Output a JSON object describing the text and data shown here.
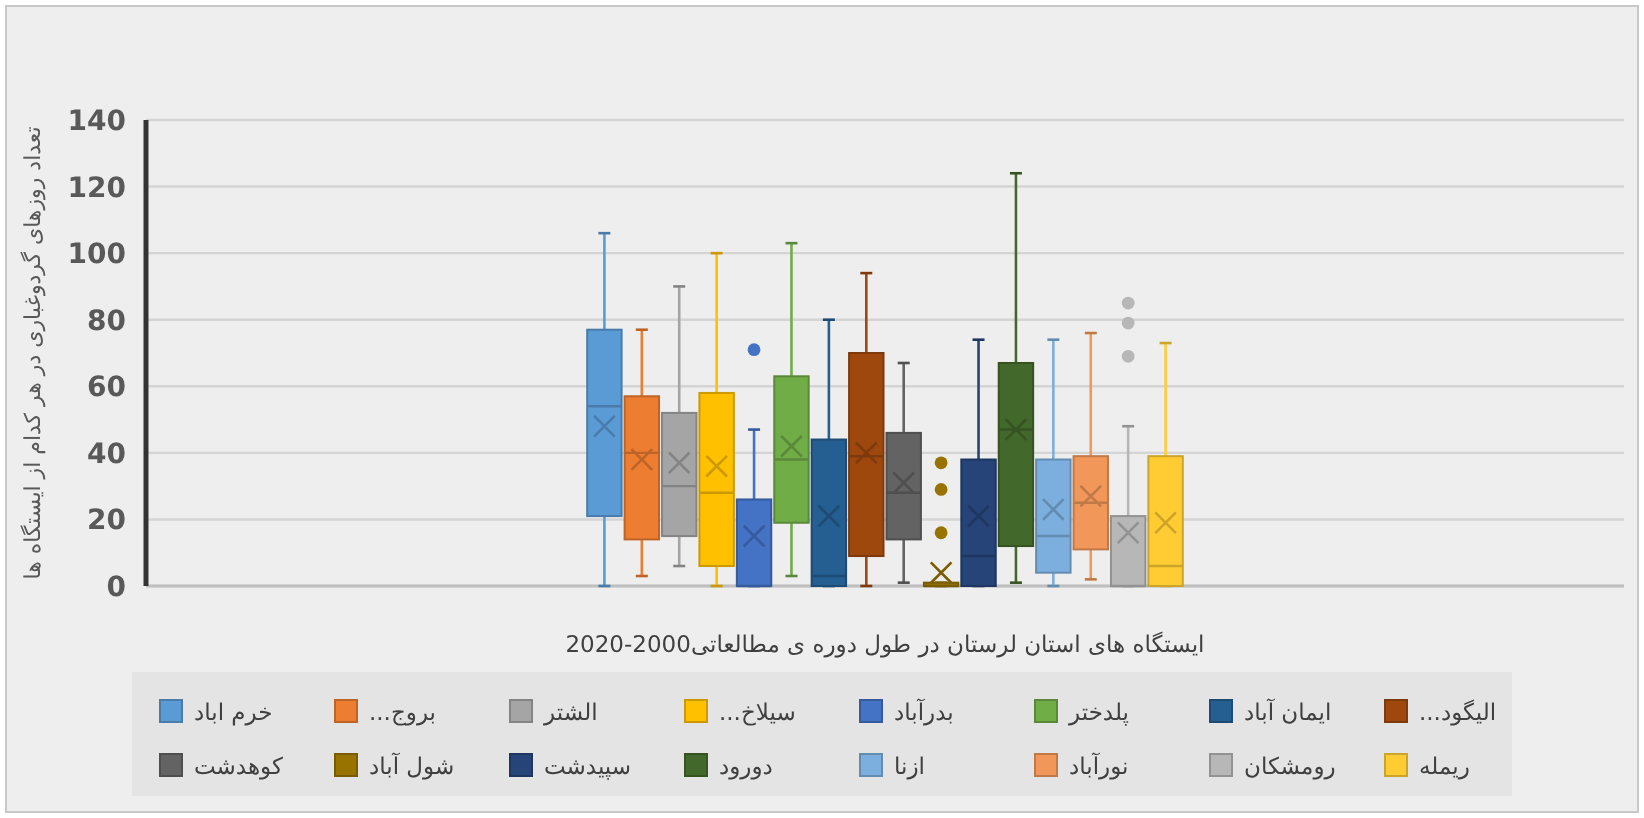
{
  "chart_data": {
    "type": "box",
    "xlabel": "ایستگاه های استان لرستان در طول دوره ی مطالعاتی2000-2020",
    "ylabel": "تعداد روزهای گردوغباری در هر کدام از ایستگاه ها",
    "categories": [
      null
    ],
    "ylim": [
      0,
      140
    ],
    "yticks": [
      0,
      20,
      40,
      60,
      80,
      100,
      120,
      140
    ],
    "grid": "y",
    "legend": "bottom",
    "series": [
      {
        "name": "خرم اباد",
        "color": "#5b9bd5",
        "boxes": [
          {
            "low": 0,
            "q1": 21,
            "median": 54,
            "q3": 77,
            "high": 106,
            "mean": 48
          }
        ]
      },
      {
        "name": "بروج...",
        "color": "#ed7d31",
        "boxes": [
          {
            "low": 3,
            "q1": 14,
            "median": 40,
            "q3": 57,
            "high": 77,
            "mean": 38
          }
        ]
      },
      {
        "name": "الشتر",
        "color": "#a5a5a5",
        "boxes": [
          {
            "low": 6,
            "q1": 15,
            "median": 30,
            "q3": 52,
            "high": 90,
            "mean": 37
          }
        ]
      },
      {
        "name": "سیلاخ...",
        "color": "#ffc000",
        "boxes": [
          {
            "low": 0,
            "q1": 6,
            "median": 28,
            "q3": 58,
            "high": 100,
            "mean": 36
          }
        ]
      },
      {
        "name": "بدرآباد",
        "color": "#4472c4",
        "boxes": [
          {
            "low": 0,
            "q1": 0,
            "median": 0,
            "q3": 26,
            "high": 47,
            "mean": 15,
            "outliers": [
              71
            ]
          }
        ]
      },
      {
        "name": "پلدختر",
        "color": "#70ad47",
        "boxes": [
          {
            "low": 3,
            "q1": 19,
            "median": 38,
            "q3": 63,
            "high": 103,
            "mean": 42
          }
        ]
      },
      {
        "name": "ایمان آباد",
        "color": "#255e91",
        "boxes": [
          {
            "low": 0,
            "q1": 0,
            "median": 3,
            "q3": 44,
            "high": 80,
            "mean": 21
          }
        ]
      },
      {
        "name": "الیگود...",
        "color": "#9e480e",
        "boxes": [
          {
            "low": 0,
            "q1": 9,
            "median": 39,
            "q3": 70,
            "high": 94,
            "mean": 40
          }
        ]
      },
      {
        "name": "کوهدشت",
        "color": "#636363",
        "boxes": [
          {
            "low": 1,
            "q1": 14,
            "median": 28,
            "q3": 46,
            "high": 67,
            "mean": 31
          }
        ]
      },
      {
        "name": "شول آباد",
        "color": "#997300",
        "boxes": [
          {
            "low": 0,
            "q1": 0,
            "median": 0,
            "q3": 1,
            "high": 1,
            "mean": 4,
            "outliers": [
              16,
              29,
              37
            ]
          }
        ]
      },
      {
        "name": "سپیدشت",
        "color": "#264478",
        "boxes": [
          {
            "low": 0,
            "q1": 0,
            "median": 9,
            "q3": 38,
            "high": 74,
            "mean": 21
          }
        ]
      },
      {
        "name": "دورود",
        "color": "#43682b",
        "boxes": [
          {
            "low": 1,
            "q1": 12,
            "median": 47,
            "q3": 67,
            "high": 124,
            "mean": 47
          }
        ]
      },
      {
        "name": "ازنا",
        "color": "#7cafdd",
        "boxes": [
          {
            "low": 0,
            "q1": 4,
            "median": 15,
            "q3": 38,
            "high": 74,
            "mean": 23
          }
        ]
      },
      {
        "name": "نورآباد",
        "color": "#f1975a",
        "boxes": [
          {
            "low": 2,
            "q1": 11,
            "median": 25,
            "q3": 39,
            "high": 76,
            "mean": 27
          }
        ]
      },
      {
        "name": "رومشکان",
        "color": "#b7b7b7",
        "boxes": [
          {
            "low": 0,
            "q1": 0,
            "median": 0,
            "q3": 21,
            "high": 48,
            "mean": 16,
            "outliers": [
              69,
              79,
              85
            ]
          }
        ]
      },
      {
        "name": "ریمله",
        "color": "#ffcd33",
        "boxes": [
          {
            "low": 0,
            "q1": 0,
            "median": 6,
            "q3": 39,
            "high": 73,
            "mean": 19
          }
        ]
      }
    ]
  }
}
